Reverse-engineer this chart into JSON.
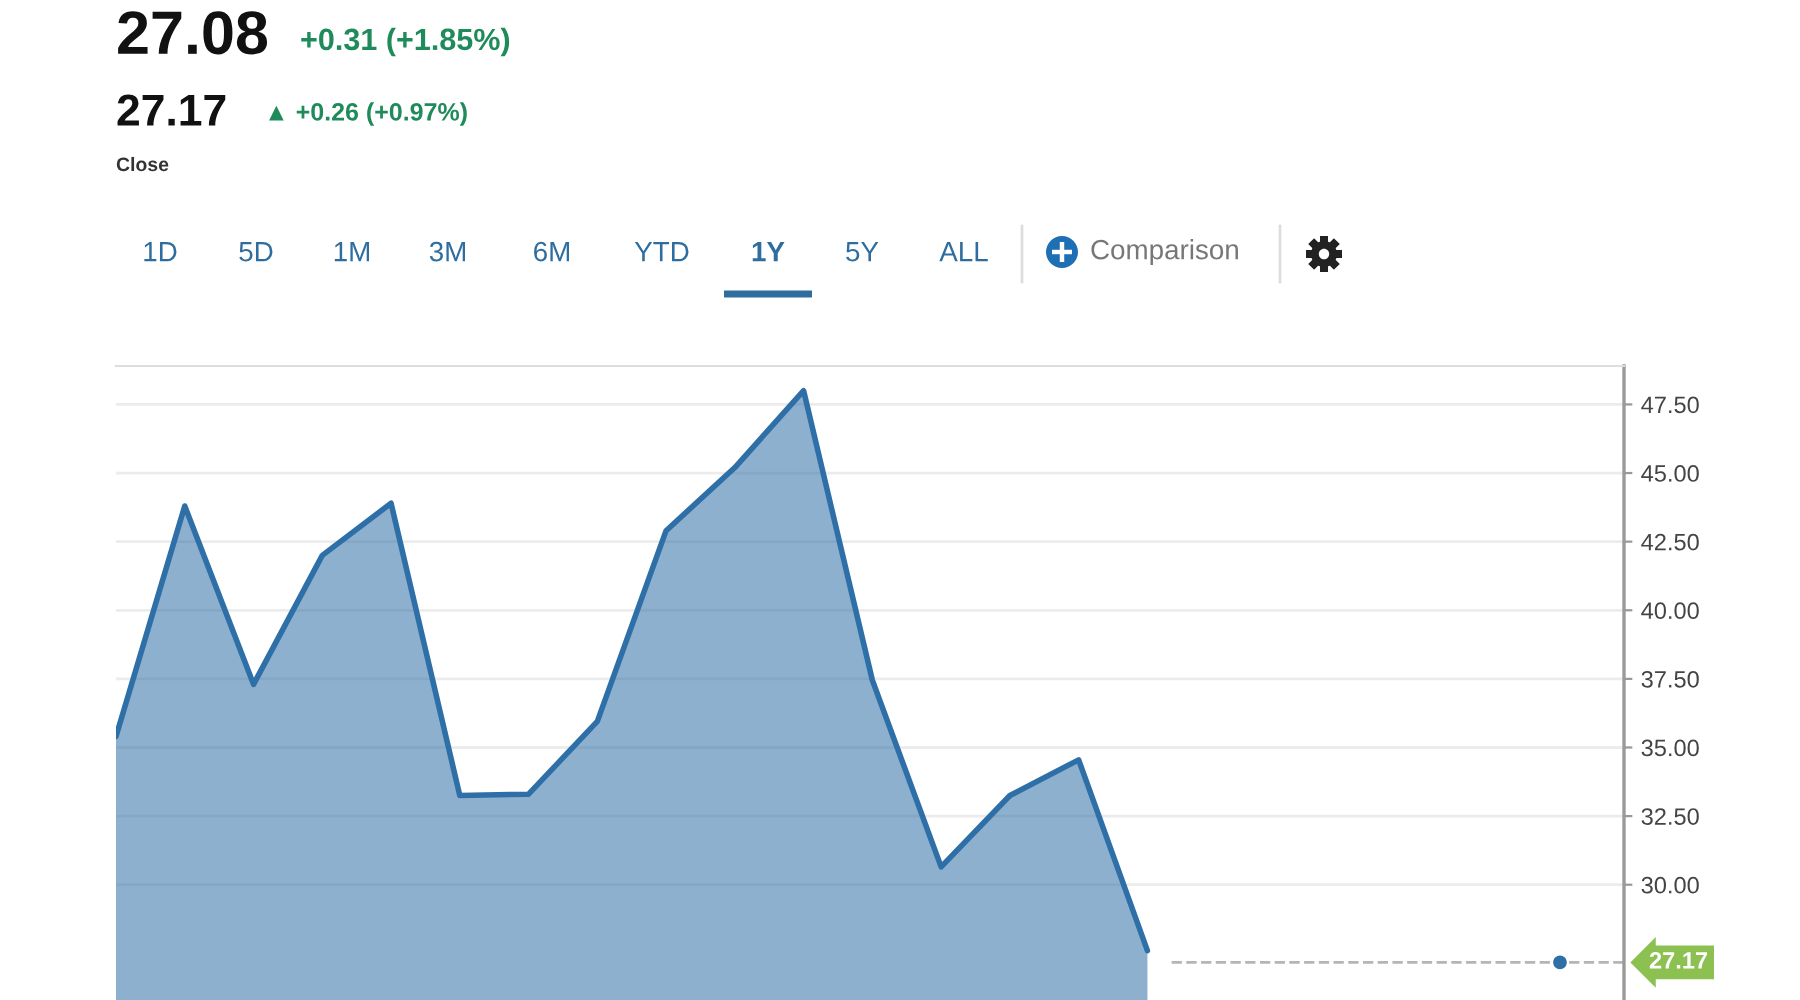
{
  "chart_data": {
    "type": "area",
    "title": "27.08",
    "subtitle": "+0.31 (+1.85%)",
    "annotations": [
      "27.17",
      "▲ +0.26 (+0.97%)",
      "Close",
      "1D",
      "5D",
      "1M",
      "3M",
      "6M",
      "YTD",
      "1Y",
      "5Y",
      "ALL",
      "Comparison"
    ],
    "categories": [
      null,
      null,
      null,
      null,
      null,
      null,
      null,
      null,
      null,
      null,
      null,
      null,
      null,
      null,
      null,
      null,
      null,
      null,
      null,
      null,
      null,
      null
    ],
    "series": [
      {
        "color": "#2f6fa7",
        "values": [
          35.4,
          43.8,
          37.3,
          42.0,
          43.9,
          33.25,
          33.3,
          35.95,
          42.9,
          45.2,
          48.0,
          37.45,
          30.65,
          33.25,
          34.55,
          27.6,
          null,
          null,
          null,
          null,
          null,
          27.17
        ]
      },
      {
        "type": "scatter",
        "marker": "circle",
        "color": "#2f6fa7",
        "values": [
          null,
          null,
          null,
          null,
          null,
          null,
          null,
          null,
          null,
          null,
          null,
          null,
          null,
          null,
          null,
          null,
          null,
          null,
          null,
          null,
          null,
          27.17
        ]
      }
    ],
    "ylim": [
      25.8,
      48.9
    ],
    "yticks": [
      {
        "value": 30,
        "label": "30.00"
      },
      {
        "value": 32.5,
        "label": "32.50"
      },
      {
        "value": 35,
        "label": "35.00"
      },
      {
        "value": 37.5,
        "label": "37.50"
      },
      {
        "value": 40,
        "label": "40.00"
      },
      {
        "value": 42.5,
        "label": "42.50"
      },
      {
        "value": 45,
        "label": "45.00"
      },
      {
        "value": 47.5,
        "label": "47.50"
      }
    ],
    "grid": "y",
    "ref_lines": [
      {
        "axis": "y",
        "value": 27.17,
        "label": "27.17",
        "line_style": "dashed"
      }
    ]
  }
}
